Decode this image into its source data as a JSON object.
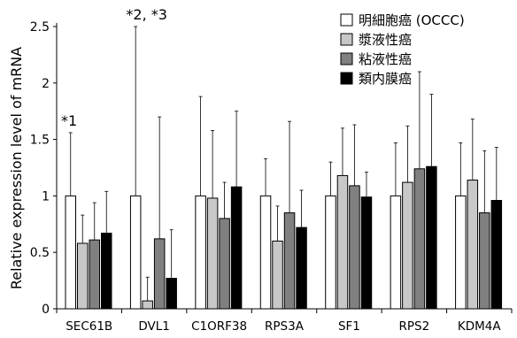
{
  "chart_data": {
    "type": "bar",
    "ylabel": "Relative expression level  of mRNA",
    "xlabel": "",
    "ylim": [
      0,
      2.5
    ],
    "yticks": [
      "0",
      "0.5",
      "1",
      "1.5",
      "2",
      "2.5"
    ],
    "categories": [
      "SEC61B",
      "DVL1",
      "C1ORF38",
      "RPS3A",
      "SF1",
      "RPS2",
      "KDM4A"
    ],
    "legend_position": "top-right",
    "grid": false,
    "series": [
      {
        "name": "明細胞癌 (OCCC)",
        "color": "#ffffff",
        "values": [
          1.0,
          1.0,
          1.0,
          1.0,
          1.0,
          1.0,
          1.0
        ],
        "error": [
          0.56,
          1.5,
          0.88,
          0.33,
          0.3,
          0.47,
          0.47
        ]
      },
      {
        "name": "漿液性癌",
        "color": "#c8c8c8",
        "values": [
          0.58,
          0.07,
          0.98,
          0.6,
          1.18,
          1.12,
          1.14
        ],
        "error": [
          0.25,
          0.21,
          0.6,
          0.31,
          0.42,
          0.5,
          0.54
        ]
      },
      {
        "name": "粘液性癌",
        "color": "#808080",
        "values": [
          0.61,
          0.62,
          0.8,
          0.85,
          1.09,
          1.24,
          0.85
        ],
        "error": [
          0.33,
          1.08,
          0.32,
          0.81,
          0.54,
          0.86,
          0.55
        ]
      },
      {
        "name": "類内膜癌",
        "color": "#000000",
        "values": [
          0.67,
          0.27,
          1.08,
          0.72,
          0.99,
          1.26,
          0.96
        ],
        "error": [
          0.37,
          0.43,
          0.67,
          0.33,
          0.22,
          0.64,
          0.47
        ]
      }
    ],
    "annotations": [
      {
        "text": "*1",
        "category": "SEC61B"
      },
      {
        "text": "*2, *3",
        "category": "DVL1"
      }
    ]
  }
}
